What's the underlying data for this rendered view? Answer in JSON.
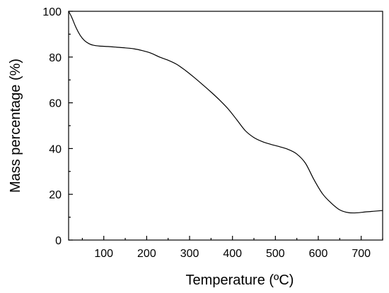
{
  "chart_data": {
    "type": "line",
    "title": "",
    "xlabel": "Temperature (ºC)",
    "ylabel": "Mass percentage (%)",
    "xlim": [
      18,
      750
    ],
    "ylim": [
      0,
      100
    ],
    "grid": false,
    "legend": "none",
    "line_color": "#000000",
    "xticks": [
      100,
      200,
      300,
      400,
      500,
      600,
      700
    ],
    "yticks": [
      0,
      20,
      40,
      60,
      80,
      100
    ],
    "series": [
      {
        "x": [
          18,
          25,
          35,
          45,
          55,
          65,
          75,
          90,
          110,
          130,
          150,
          170,
          190,
          210,
          230,
          250,
          270,
          290,
          310,
          330,
          350,
          370,
          390,
          410,
          430,
          450,
          470,
          490,
          510,
          530,
          550,
          570,
          590,
          610,
          630,
          650,
          670,
          690,
          710,
          730,
          750
        ],
        "y": [
          100,
          97.5,
          93.0,
          89.5,
          87.2,
          85.9,
          85.2,
          84.8,
          84.6,
          84.3,
          84.0,
          83.6,
          82.8,
          81.7,
          80.0,
          78.6,
          76.8,
          74.2,
          71.2,
          68.0,
          64.7,
          61.2,
          57.3,
          52.6,
          47.8,
          44.8,
          43.0,
          41.8,
          40.8,
          39.6,
          37.6,
          33.6,
          26.4,
          20.2,
          16.2,
          13.2,
          12.0,
          11.9,
          12.3,
          12.6,
          12.9
        ]
      }
    ]
  }
}
